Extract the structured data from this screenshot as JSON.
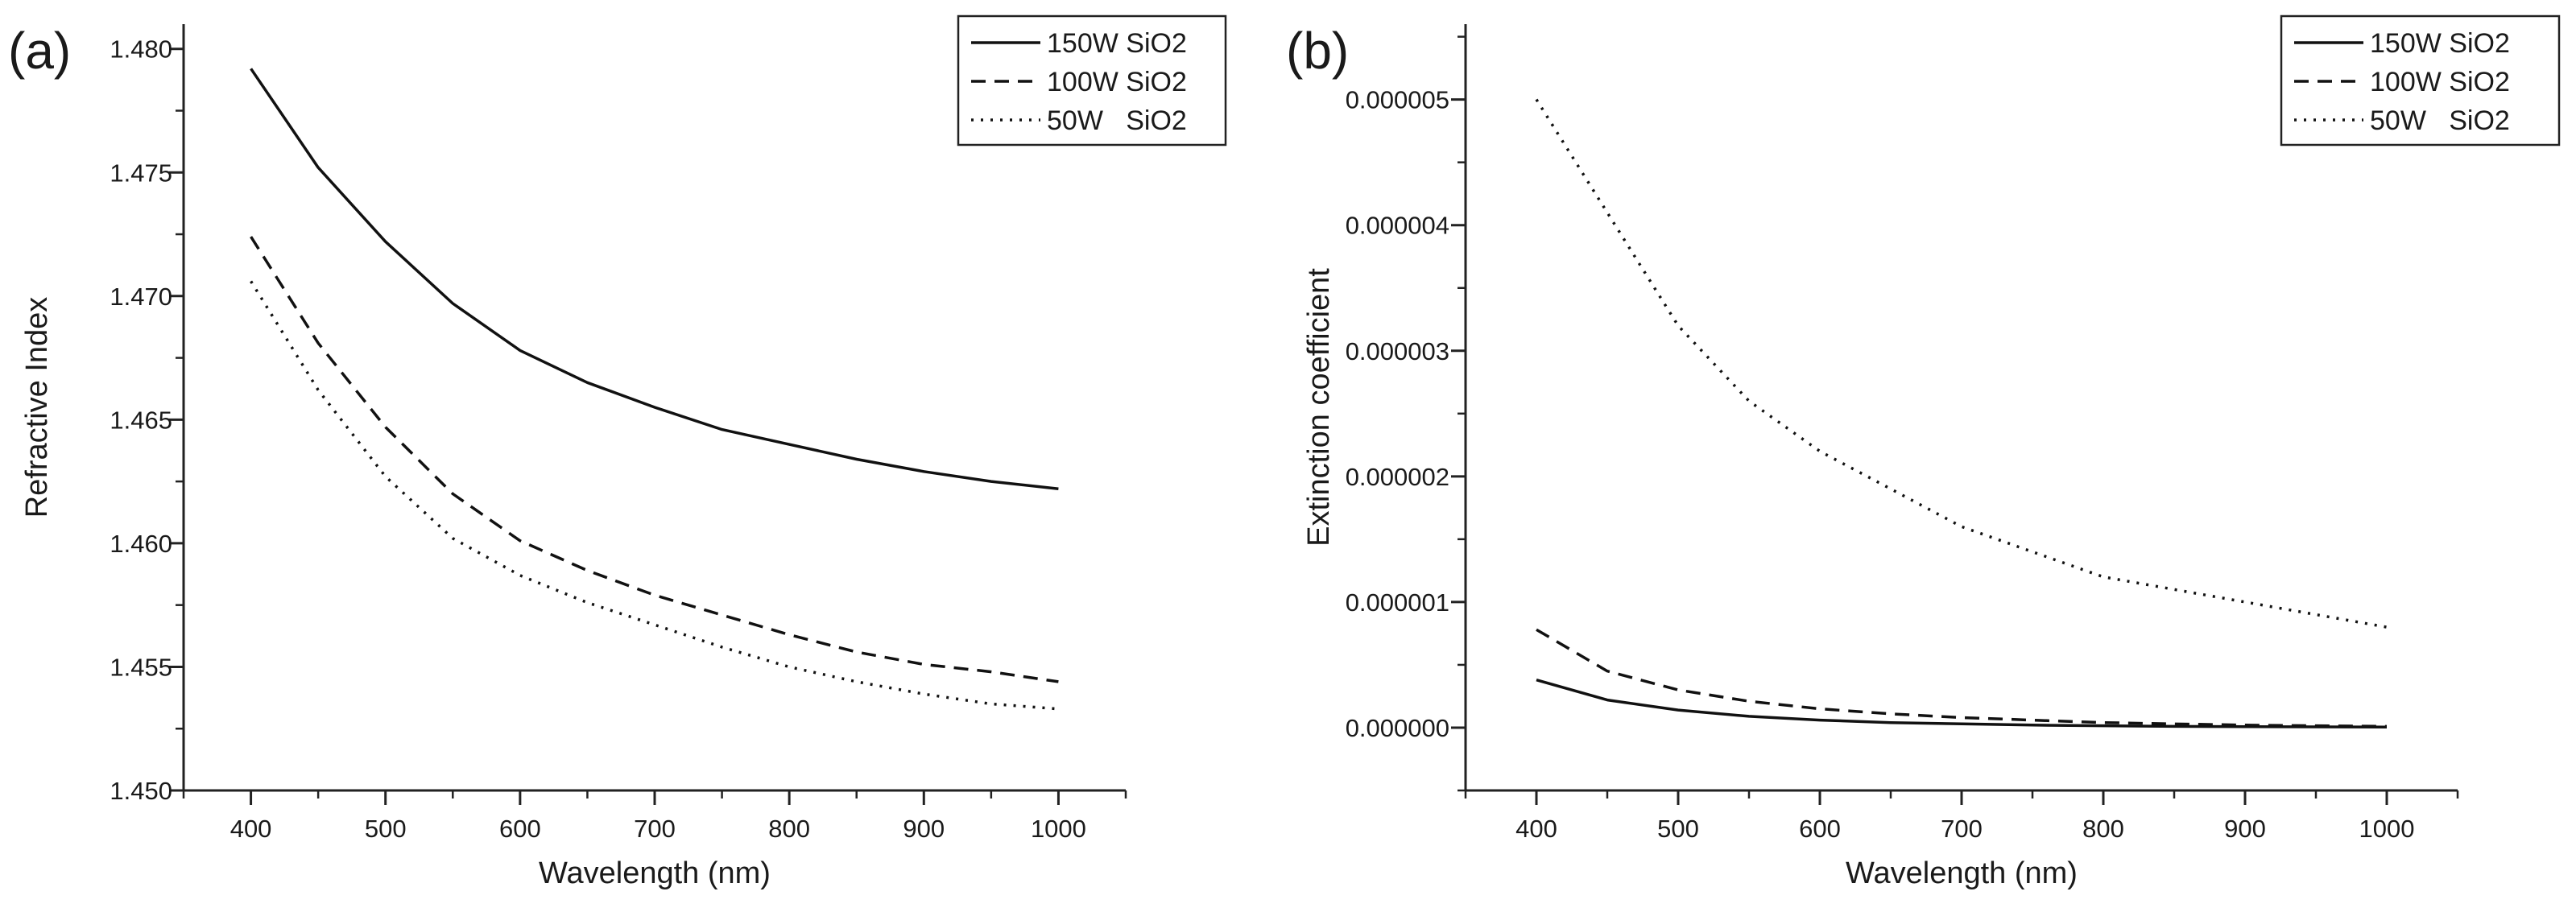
{
  "chart_data": [
    {
      "panel": "(a)",
      "type": "line",
      "title": "",
      "xlabel": "Wavelength (nm)",
      "ylabel": "Refractive Index",
      "xlim": [
        350,
        1050
      ],
      "ylim": [
        1.45,
        1.481
      ],
      "xticks": [
        400,
        500,
        600,
        700,
        800,
        900,
        1000
      ],
      "xtick_labels": [
        "400",
        "500",
        "600",
        "700",
        "800",
        "900",
        "1000"
      ],
      "yticks": [
        1.45,
        1.455,
        1.46,
        1.465,
        1.47,
        1.475,
        1.48
      ],
      "ytick_labels": [
        "1.450",
        "1.455",
        "1.460",
        "1.465",
        "1.470",
        "1.475",
        "1.480"
      ],
      "grid": false,
      "legend_position": "top-right",
      "x": [
        400,
        450,
        500,
        550,
        600,
        650,
        700,
        750,
        800,
        850,
        900,
        950,
        1000
      ],
      "series": [
        {
          "name": "150W SiO2",
          "style": "solid",
          "values": [
            1.4792,
            1.4752,
            1.4722,
            1.4697,
            1.4678,
            1.4665,
            1.4655,
            1.4646,
            1.464,
            1.4634,
            1.4629,
            1.4625,
            1.4622
          ]
        },
        {
          "name": "100W SiO2",
          "style": "dashed",
          "values": [
            1.4724,
            1.4681,
            1.4647,
            1.462,
            1.4601,
            1.4589,
            1.4579,
            1.4571,
            1.4563,
            1.4556,
            1.4551,
            1.4548,
            1.4544
          ]
        },
        {
          "name": "50W   SiO2",
          "style": "dotted",
          "values": [
            1.4706,
            1.4662,
            1.4627,
            1.4602,
            1.4587,
            1.4576,
            1.4567,
            1.4558,
            1.455,
            1.4544,
            1.4539,
            1.4535,
            1.4533
          ]
        }
      ]
    },
    {
      "panel": "(b)",
      "type": "line",
      "title": "",
      "xlabel": "Wavelength (nm)",
      "ylabel": "Extinction coefficient",
      "xlim": [
        350,
        1050
      ],
      "ylim": [
        -5e-07,
        5.6e-06
      ],
      "xticks": [
        400,
        500,
        600,
        700,
        800,
        900,
        1000
      ],
      "xtick_labels": [
        "400",
        "500",
        "600",
        "700",
        "800",
        "900",
        "1000"
      ],
      "yticks": [
        0.0,
        1e-06,
        2e-06,
        3e-06,
        4e-06,
        5e-06
      ],
      "ytick_labels": [
        "0.000000",
        "0.000001",
        "0.000002",
        "0.000003",
        "0.000004",
        "0.000005"
      ],
      "grid": false,
      "legend_position": "top-right",
      "x": [
        400,
        450,
        500,
        550,
        600,
        650,
        700,
        750,
        800,
        850,
        900,
        950,
        1000
      ],
      "series": [
        {
          "name": "150W SiO2",
          "style": "solid",
          "values": [
            3.8e-07,
            2.2e-07,
            1.4e-07,
            9e-08,
            6e-08,
            4e-08,
            3e-08,
            2e-08,
            1.5e-08,
            1e-08,
            8e-09,
            6e-09,
            5e-09
          ]
        },
        {
          "name": "100W SiO2",
          "style": "dashed",
          "values": [
            7.8e-07,
            4.5e-07,
            3e-07,
            2.1e-07,
            1.5e-07,
            1.1e-07,
            8e-08,
            6e-08,
            4e-08,
            3e-08,
            2e-08,
            1.5e-08,
            1e-08
          ]
        },
        {
          "name": "50W   SiO2",
          "style": "dotted",
          "values": [
            5e-06,
            4.1e-06,
            3.2e-06,
            2.6e-06,
            2.2e-06,
            1.9e-06,
            1.6e-06,
            1.4e-06,
            1.2e-06,
            1.1e-06,
            1e-06,
            9e-07,
            8e-07
          ]
        }
      ]
    }
  ]
}
